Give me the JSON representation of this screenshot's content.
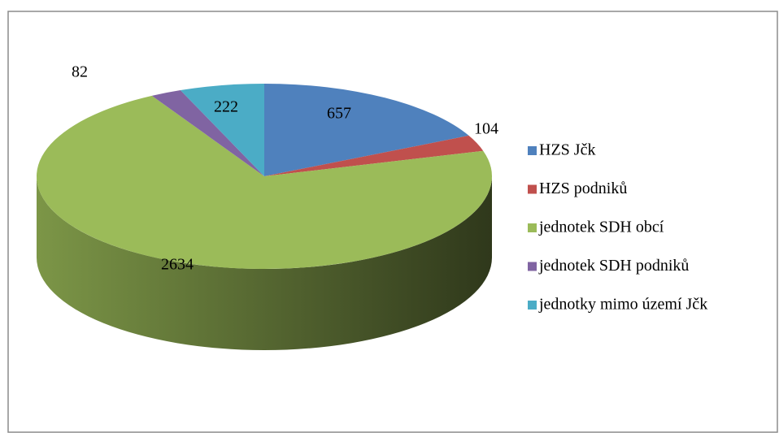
{
  "chart_data": {
    "type": "pie",
    "categories": [
      "HZS Jčk",
      "HZS podniků",
      "jednotek SDH obcí",
      "jednotek SDH podniků",
      "jednotky mimo území Jčk"
    ],
    "values": [
      657,
      104,
      2634,
      82,
      222
    ],
    "colors": [
      "#4f81bd",
      "#c0504d",
      "#9bbb59",
      "#8064a2",
      "#4bacc6"
    ],
    "legend": "right"
  }
}
